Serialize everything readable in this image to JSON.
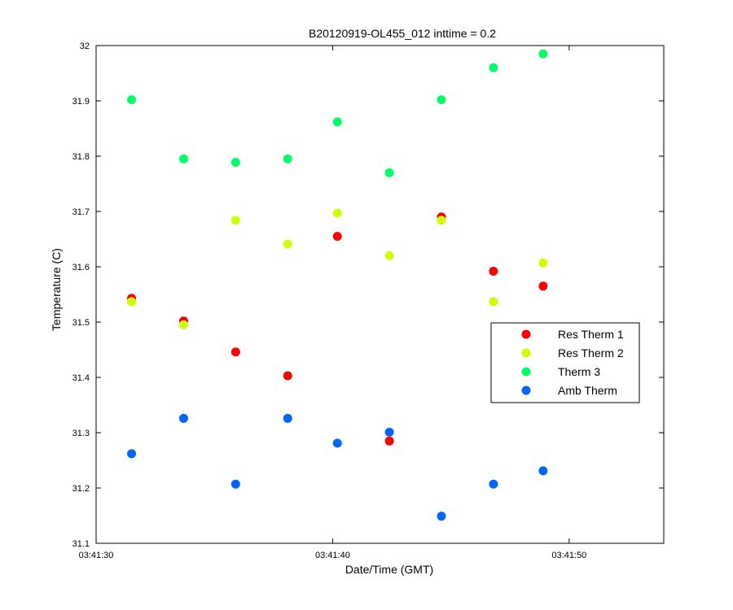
{
  "chart_data": {
    "type": "scatter",
    "title": "B20120919-OL455_012 inttime = 0.2",
    "xlabel": "Date/Time (GMT)",
    "ylabel": "Temperature (C)",
    "x_unit": "time (HH:MM:SS)",
    "xlim": [
      "03:41:30",
      "03:41:54"
    ],
    "ylim": [
      31.1,
      32.0
    ],
    "x_ticks": [
      "03:41:30",
      "03:41:40",
      "03:41:50"
    ],
    "y_ticks": [
      "31.1",
      "31.2",
      "31.3",
      "31.4",
      "31.5",
      "31.6",
      "31.7",
      "31.8",
      "31.9",
      "32"
    ],
    "grid": false,
    "legend_position": "center-right",
    "x": [
      "03:41:31.5",
      "03:41:33.7",
      "03:41:35.9",
      "03:41:38.1",
      "03:41:40.2",
      "03:41:42.4",
      "03:41:44.6",
      "03:41:46.8",
      "03:41:48.9"
    ],
    "series": [
      {
        "name": "Res Therm 1",
        "color": "#ff0000",
        "values": [
          31.543,
          31.502,
          31.446,
          31.403,
          31.655,
          31.285,
          31.69,
          31.592,
          31.565
        ]
      },
      {
        "name": "Res Therm 2",
        "color": "#ccff00",
        "values": [
          31.537,
          31.495,
          31.684,
          31.641,
          31.697,
          31.62,
          31.684,
          31.537,
          31.607
        ]
      },
      {
        "name": "Therm 3",
        "color": "#00ff66",
        "values": [
          31.902,
          31.795,
          31.789,
          31.795,
          31.862,
          31.77,
          31.902,
          31.96,
          31.985
        ]
      },
      {
        "name": "Amb Therm",
        "color": "#0066ff",
        "values": [
          31.262,
          31.326,
          31.207,
          31.326,
          31.281,
          31.301,
          31.149,
          31.207,
          31.231
        ]
      }
    ]
  }
}
